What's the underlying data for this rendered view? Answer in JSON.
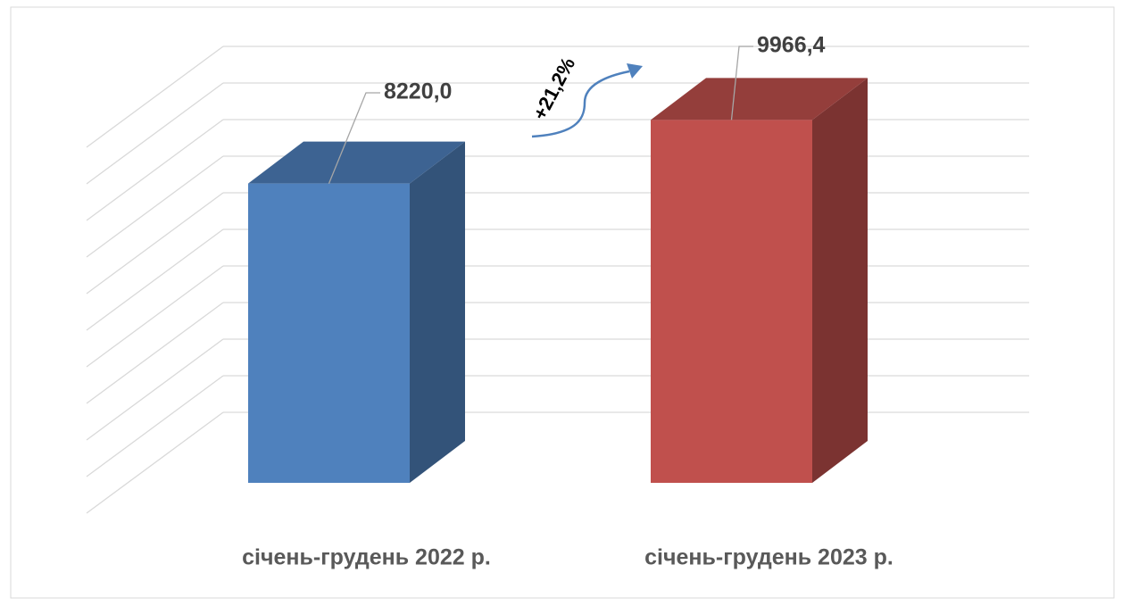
{
  "chart_data": {
    "type": "bar3d",
    "categories": [
      "січень-грудень 2022 р.",
      "січень-грудень 2023 р."
    ],
    "values": [
      8220.0,
      9966.4
    ],
    "value_labels": [
      "8220,0",
      "9966,4"
    ],
    "colors": [
      "#4f81bd",
      "#c0504d"
    ],
    "ylim": [
      0,
      10000
    ],
    "yticks": [
      0,
      1000,
      2000,
      3000,
      4000,
      5000,
      6000,
      7000,
      8000,
      9000,
      10000
    ],
    "grid": true,
    "annotation": "+21,2%"
  }
}
